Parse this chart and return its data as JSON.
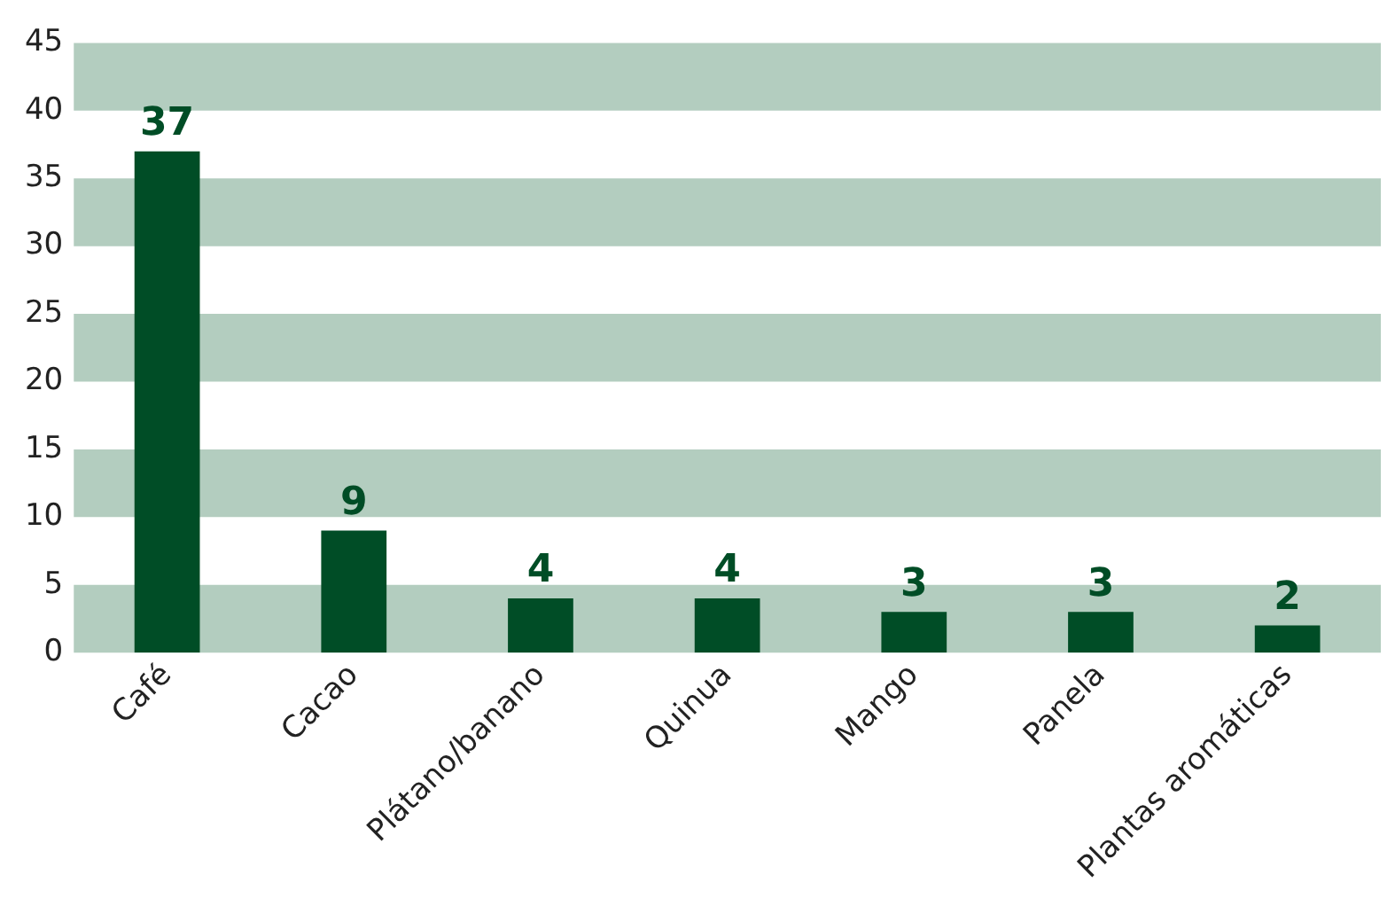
{
  "chart_data": {
    "type": "bar",
    "categories": [
      "Café",
      "Cacao",
      "Plátano/banano",
      "Quinua",
      "Mango",
      "Panela",
      "Plantas aromáticas"
    ],
    "values": [
      37,
      9,
      4,
      4,
      3,
      3,
      2
    ],
    "color": "#004d26",
    "ylim": [
      0,
      45
    ],
    "yticks": [
      0,
      5,
      10,
      15,
      20,
      25,
      30,
      35,
      40,
      45
    ],
    "grid": false,
    "data_labels": true,
    "bands": [
      {
        "axis": "y",
        "from": 0,
        "to": 5,
        "color": "#b3cdbf"
      },
      {
        "axis": "y",
        "from": 10,
        "to": 15,
        "color": "#b3cdbf"
      },
      {
        "axis": "y",
        "from": 20,
        "to": 25,
        "color": "#b3cdbf"
      },
      {
        "axis": "y",
        "from": 30,
        "to": 35,
        "color": "#b3cdbf"
      },
      {
        "axis": "y",
        "from": 40,
        "to": 45,
        "color": "#b3cdbf"
      }
    ]
  }
}
